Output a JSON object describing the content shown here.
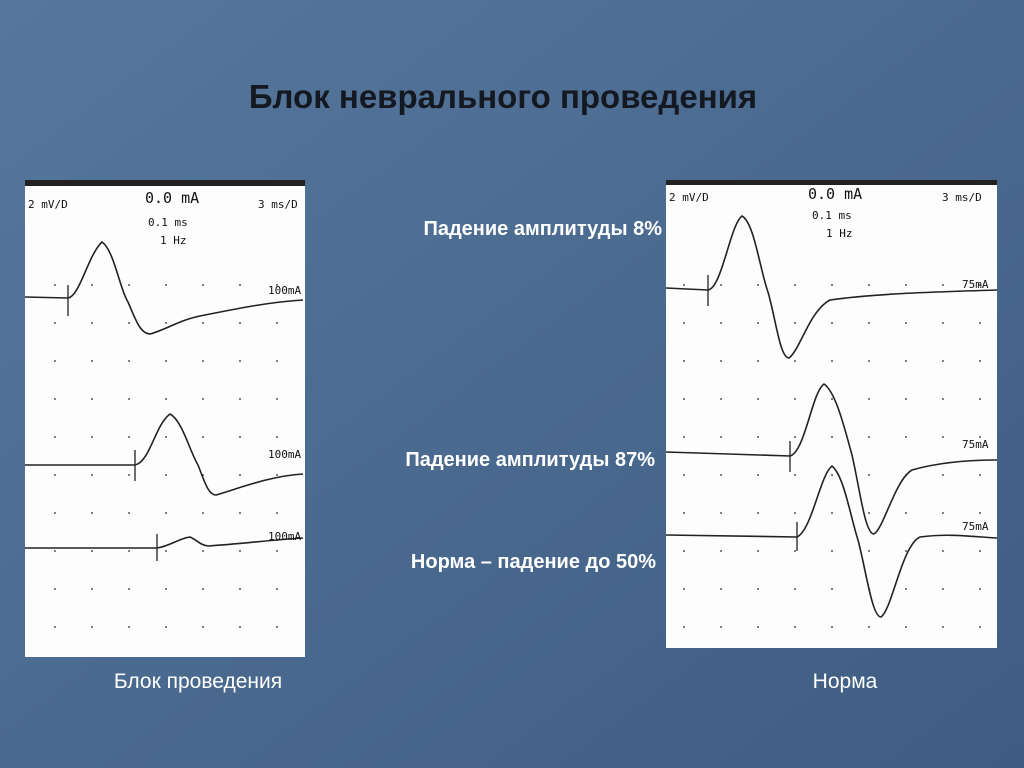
{
  "title": "Блок неврального проведения",
  "left_panel": {
    "scale_v": "2 mV/D",
    "current": "0.0 mA",
    "duration": "0.1 ms",
    "frequency": "1 Hz",
    "scale_t": "3 ms/D",
    "traces": [
      "100mA",
      "100mA",
      "100mA"
    ]
  },
  "right_panel": {
    "scale_v": "2 mV/D",
    "current": "0.0 mA",
    "duration": "0.1 ms",
    "frequency": "1 Hz",
    "scale_t": "3 ms/D",
    "traces": [
      "75mA",
      "75mA",
      "75mA"
    ]
  },
  "annotations": [
    "Падение амплитуды 8%",
    "Падение амплитуды 87%",
    "Норма – падение до 50%"
  ],
  "captions": [
    "Блок проведения",
    "Норма"
  ]
}
